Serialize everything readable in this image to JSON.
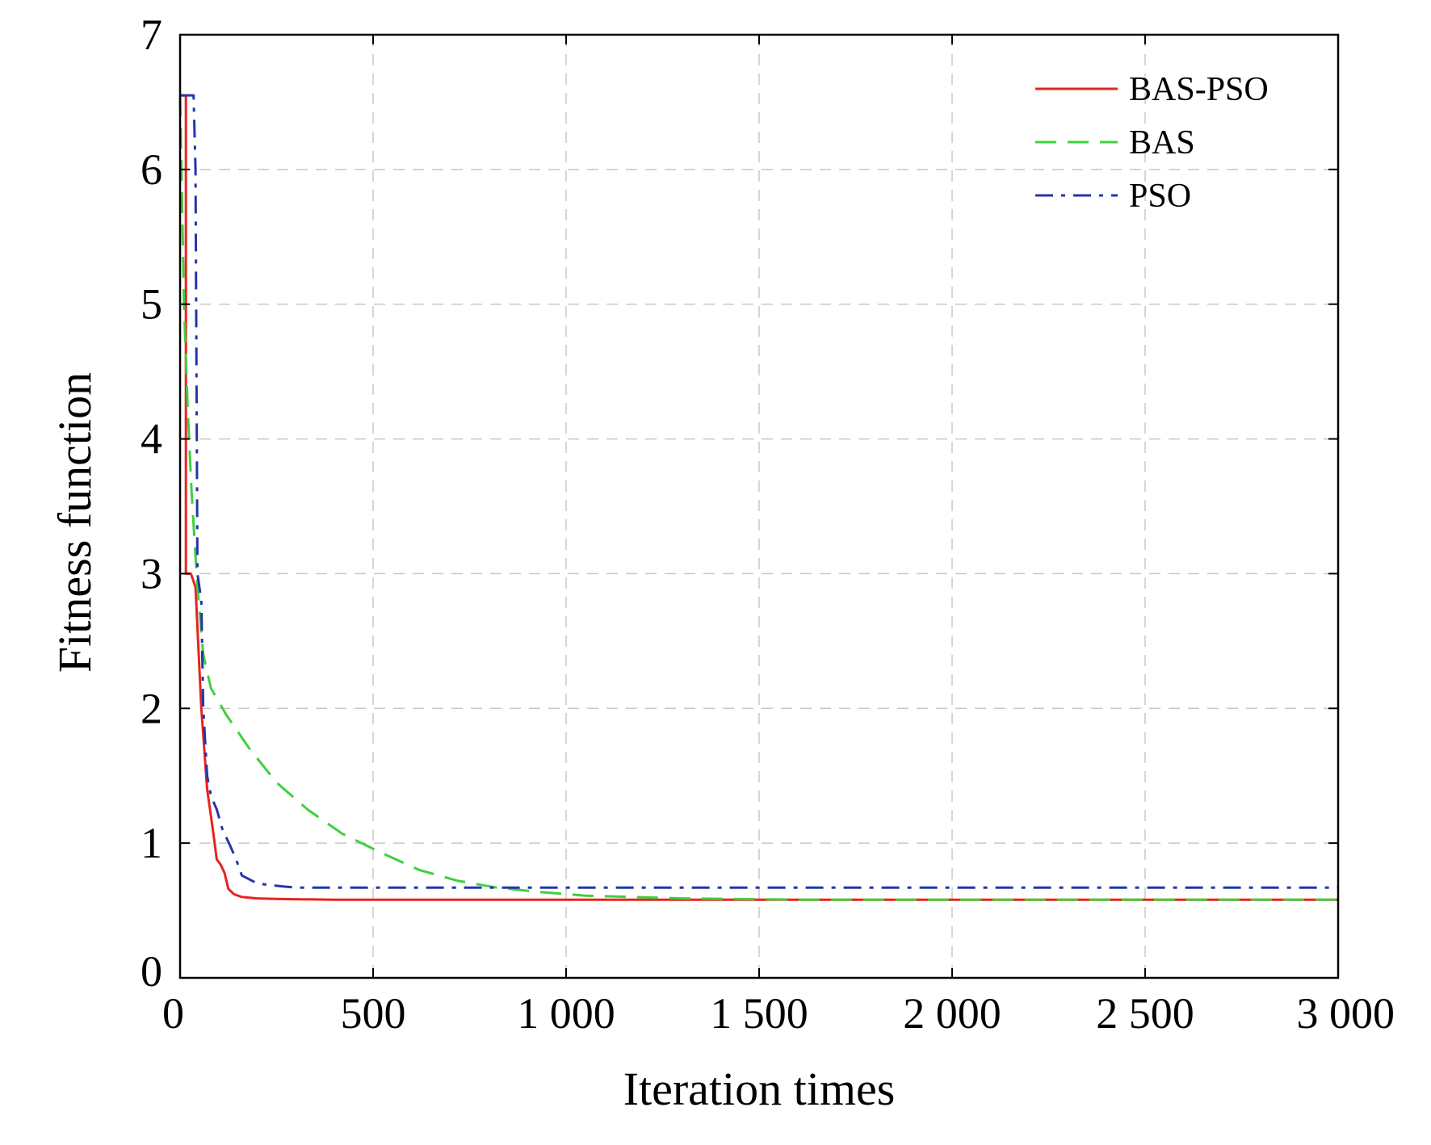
{
  "chart_data": {
    "type": "line",
    "title": "",
    "xlabel": "Iteration times",
    "ylabel": "Fitness function",
    "xlim": [
      0,
      3000
    ],
    "ylim": [
      0,
      7
    ],
    "xticks": [
      0,
      500,
      1000,
      1500,
      2000,
      2500,
      3000
    ],
    "xtick_labels": [
      "0",
      "500",
      "1 000",
      "1 500",
      "2 000",
      "2 500",
      "3 000"
    ],
    "yticks": [
      0,
      1,
      2,
      3,
      4,
      5,
      6,
      7
    ],
    "ytick_labels": [
      "0",
      "1",
      "2",
      "3",
      "4",
      "5",
      "6",
      "7"
    ],
    "grid": true,
    "legend_position": "top-right",
    "series": [
      {
        "name": "BAS-PSO",
        "color": "#e8231f",
        "dash": "solid",
        "points": [
          [
            0,
            6.55
          ],
          [
            15,
            6.55
          ],
          [
            15,
            3.0
          ],
          [
            28,
            3.0
          ],
          [
            40,
            2.9
          ],
          [
            55,
            2.0
          ],
          [
            70,
            1.4
          ],
          [
            85,
            1.1
          ],
          [
            95,
            0.88
          ],
          [
            105,
            0.84
          ],
          [
            115,
            0.78
          ],
          [
            125,
            0.66
          ],
          [
            140,
            0.62
          ],
          [
            160,
            0.6
          ],
          [
            200,
            0.59
          ],
          [
            260,
            0.585
          ],
          [
            400,
            0.58
          ],
          [
            1000,
            0.58
          ],
          [
            2000,
            0.58
          ],
          [
            3000,
            0.58
          ]
        ]
      },
      {
        "name": "BAS",
        "color": "#3fd03f",
        "dash": "dashed",
        "points": [
          [
            0,
            6.55
          ],
          [
            10,
            5.0
          ],
          [
            20,
            4.2
          ],
          [
            30,
            3.6
          ],
          [
            45,
            2.9
          ],
          [
            60,
            2.4
          ],
          [
            80,
            2.15
          ],
          [
            120,
            1.95
          ],
          [
            180,
            1.7
          ],
          [
            250,
            1.45
          ],
          [
            330,
            1.25
          ],
          [
            420,
            1.07
          ],
          [
            520,
            0.93
          ],
          [
            620,
            0.8
          ],
          [
            720,
            0.72
          ],
          [
            820,
            0.67
          ],
          [
            920,
            0.64
          ],
          [
            1050,
            0.61
          ],
          [
            1300,
            0.59
          ],
          [
            1600,
            0.58
          ],
          [
            2000,
            0.58
          ],
          [
            3000,
            0.58
          ]
        ]
      },
      {
        "name": "PSO",
        "color": "#2436a8",
        "dash": "dashdot",
        "points": [
          [
            0,
            6.55
          ],
          [
            35,
            6.55
          ],
          [
            40,
            6.0
          ],
          [
            45,
            3.0
          ],
          [
            55,
            2.8
          ],
          [
            60,
            2.0
          ],
          [
            70,
            1.5
          ],
          [
            80,
            1.35
          ],
          [
            95,
            1.25
          ],
          [
            110,
            1.1
          ],
          [
            130,
            0.98
          ],
          [
            145,
            0.88
          ],
          [
            160,
            0.76
          ],
          [
            200,
            0.7
          ],
          [
            260,
            0.68
          ],
          [
            300,
            0.67
          ],
          [
            1000,
            0.67
          ],
          [
            2000,
            0.67
          ],
          [
            3000,
            0.67
          ]
        ]
      }
    ]
  }
}
